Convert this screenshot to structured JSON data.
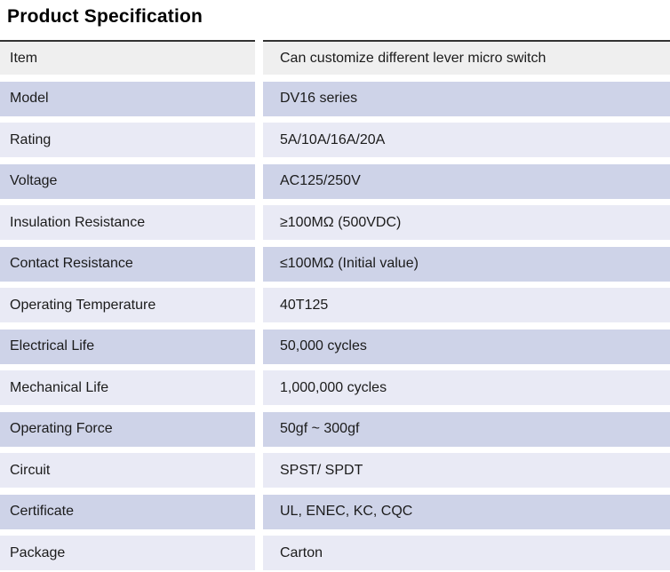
{
  "title": "Product Specification",
  "table": {
    "columns": [
      "label",
      "value"
    ],
    "rows": [
      {
        "label": "Item",
        "value": "Can customize different lever micro switch"
      },
      {
        "label": "Model",
        "value": "DV16 series"
      },
      {
        "label": "Rating",
        "value": "5A/10A/16A/20A"
      },
      {
        "label": "Voltage",
        "value": "AC125/250V"
      },
      {
        "label": "Insulation Resistance",
        "value": "≥100MΩ (500VDC)"
      },
      {
        "label": "Contact Resistance",
        "value": "≤100MΩ (Initial value)"
      },
      {
        "label": "Operating Temperature",
        "value": "40T125"
      },
      {
        "label": "Electrical Life",
        "value": "50,000 cycles"
      },
      {
        "label": "Mechanical Life",
        "value": "1,000,000 cycles"
      },
      {
        "label": "Operating Force",
        "value": "50gf ~ 300gf"
      },
      {
        "label": "Circuit",
        "value": "SPST/ SPDT"
      },
      {
        "label": "Certificate",
        "value": "UL, ENEC, KC, CQC"
      },
      {
        "label": "Package",
        "value": "Carton"
      }
    ]
  },
  "colors": {
    "header_row_bg": "#efefef",
    "row_alt_dark": "#ced3e8",
    "row_alt_light": "#e9eaf5",
    "table_top_border": "#333333",
    "text": "#1b1b1b"
  }
}
